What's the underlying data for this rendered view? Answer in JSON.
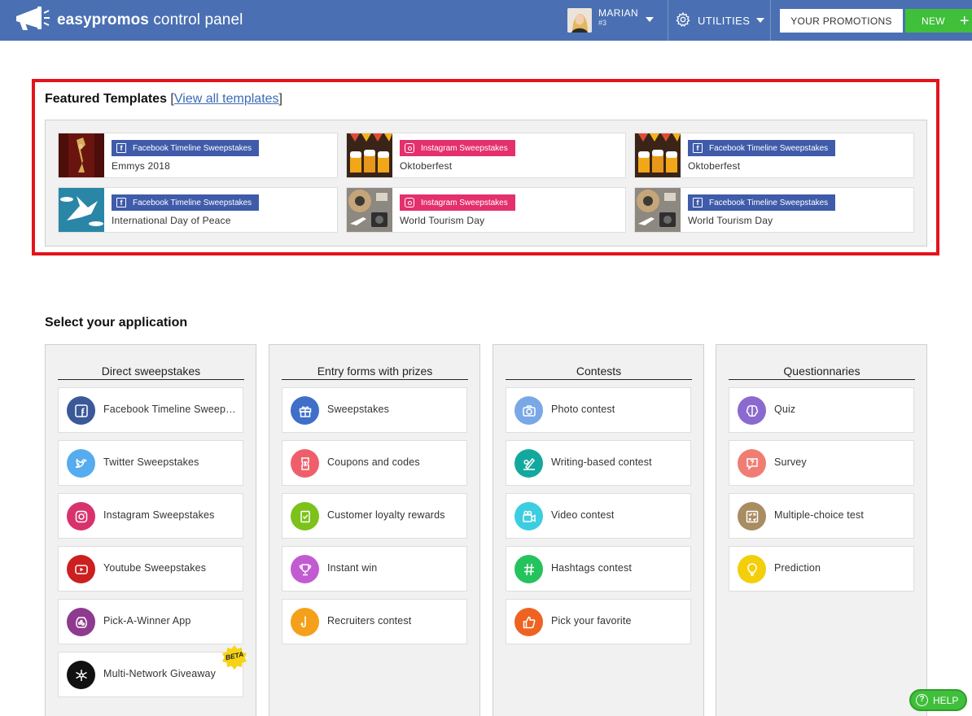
{
  "header": {
    "brand_bold": "easypromos",
    "brand_rest": " control panel",
    "user_name": "MARIAN",
    "user_id": "#3",
    "utilities_label": "UTILITIES",
    "promotions_label": "YOUR PROMOTIONS",
    "new_label": "NEW",
    "new_plus": "+"
  },
  "featured": {
    "title": "Featured Templates",
    "bracket_open": "[",
    "view_all": "View all templates",
    "bracket_close": "]",
    "templates": [
      {
        "badge": "Facebook Timeline Sweepstakes",
        "network": "facebook",
        "name": "Emmys 2018",
        "thumb": "emmy-statue"
      },
      {
        "badge": "Instagram Sweepstakes",
        "network": "instagram",
        "name": "Oktoberfest",
        "thumb": "beer-mugs"
      },
      {
        "badge": "Facebook Timeline Sweepstakes",
        "network": "facebook",
        "name": "Oktoberfest",
        "thumb": "beer-mugs"
      },
      {
        "badge": "Facebook Timeline Sweepstakes",
        "network": "facebook",
        "name": "International Day of Peace",
        "thumb": "peace-dove"
      },
      {
        "badge": "Instagram Sweepstakes",
        "network": "instagram",
        "name": "World Tourism Day",
        "thumb": "travel-flatlay"
      },
      {
        "badge": "Facebook Timeline Sweepstakes",
        "network": "facebook",
        "name": "World Tourism Day",
        "thumb": "travel-flatlay"
      }
    ]
  },
  "apps": {
    "title": "Select your application",
    "columns": [
      {
        "title": "Direct sweepstakes",
        "items": [
          {
            "label": "Facebook Timeline Sweepstakes",
            "icon": "facebook-icon",
            "color": "#3b5998"
          },
          {
            "label": "Twitter Sweepstakes",
            "icon": "twitter-icon",
            "color": "#55acee"
          },
          {
            "label": "Instagram Sweepstakes",
            "icon": "instagram-icon",
            "color": "#d8326d"
          },
          {
            "label": "Youtube Sweepstakes",
            "icon": "youtube-icon",
            "color": "#cc1f1f"
          },
          {
            "label": "Pick-A-Winner App",
            "icon": "fishbowl-icon",
            "color": "#8e3a8f"
          },
          {
            "label": "Multi-Network Giveaway",
            "icon": "network-icon",
            "color": "#111111"
          }
        ]
      },
      {
        "title": "Entry forms with prizes",
        "items": [
          {
            "label": "Sweepstakes",
            "icon": "gift-icon",
            "color": "#3f6fc8"
          },
          {
            "label": "Coupons and codes",
            "icon": "ticket-icon",
            "color": "#ef5f6b"
          },
          {
            "label": "Customer loyalty rewards",
            "icon": "reward-icon",
            "color": "#7cc21a"
          },
          {
            "label": "Instant win",
            "icon": "trophy-icon",
            "color": "#c25bd1"
          },
          {
            "label": "Recruiters contest",
            "icon": "hook-icon",
            "color": "#f5a01a"
          }
        ]
      },
      {
        "title": "Contests",
        "items": [
          {
            "label": "Photo contest",
            "icon": "camera-icon",
            "color": "#7aa8e6"
          },
          {
            "label": "Writing-based contest",
            "icon": "writing-icon",
            "color": "#13a89e"
          },
          {
            "label": "Video contest",
            "icon": "video-icon",
            "color": "#3ccde0"
          },
          {
            "label": "Hashtags contest",
            "icon": "hashtag-icon",
            "color": "#25c35d"
          },
          {
            "label": "Pick your favorite",
            "icon": "thumbs-up-icon",
            "color": "#ee6322"
          }
        ]
      },
      {
        "title": "Questionnaries",
        "items": [
          {
            "label": "Quiz",
            "icon": "brain-icon",
            "color": "#8b6ad0"
          },
          {
            "label": "Survey",
            "icon": "survey-icon",
            "color": "#f07d74"
          },
          {
            "label": "Multiple-choice test",
            "icon": "checklist-icon",
            "color": "#a98c62"
          },
          {
            "label": "Prediction",
            "icon": "bulb-icon",
            "color": "#f2cf0a"
          }
        ]
      }
    ],
    "beta_label": "BETA"
  },
  "help_label": "HELP"
}
